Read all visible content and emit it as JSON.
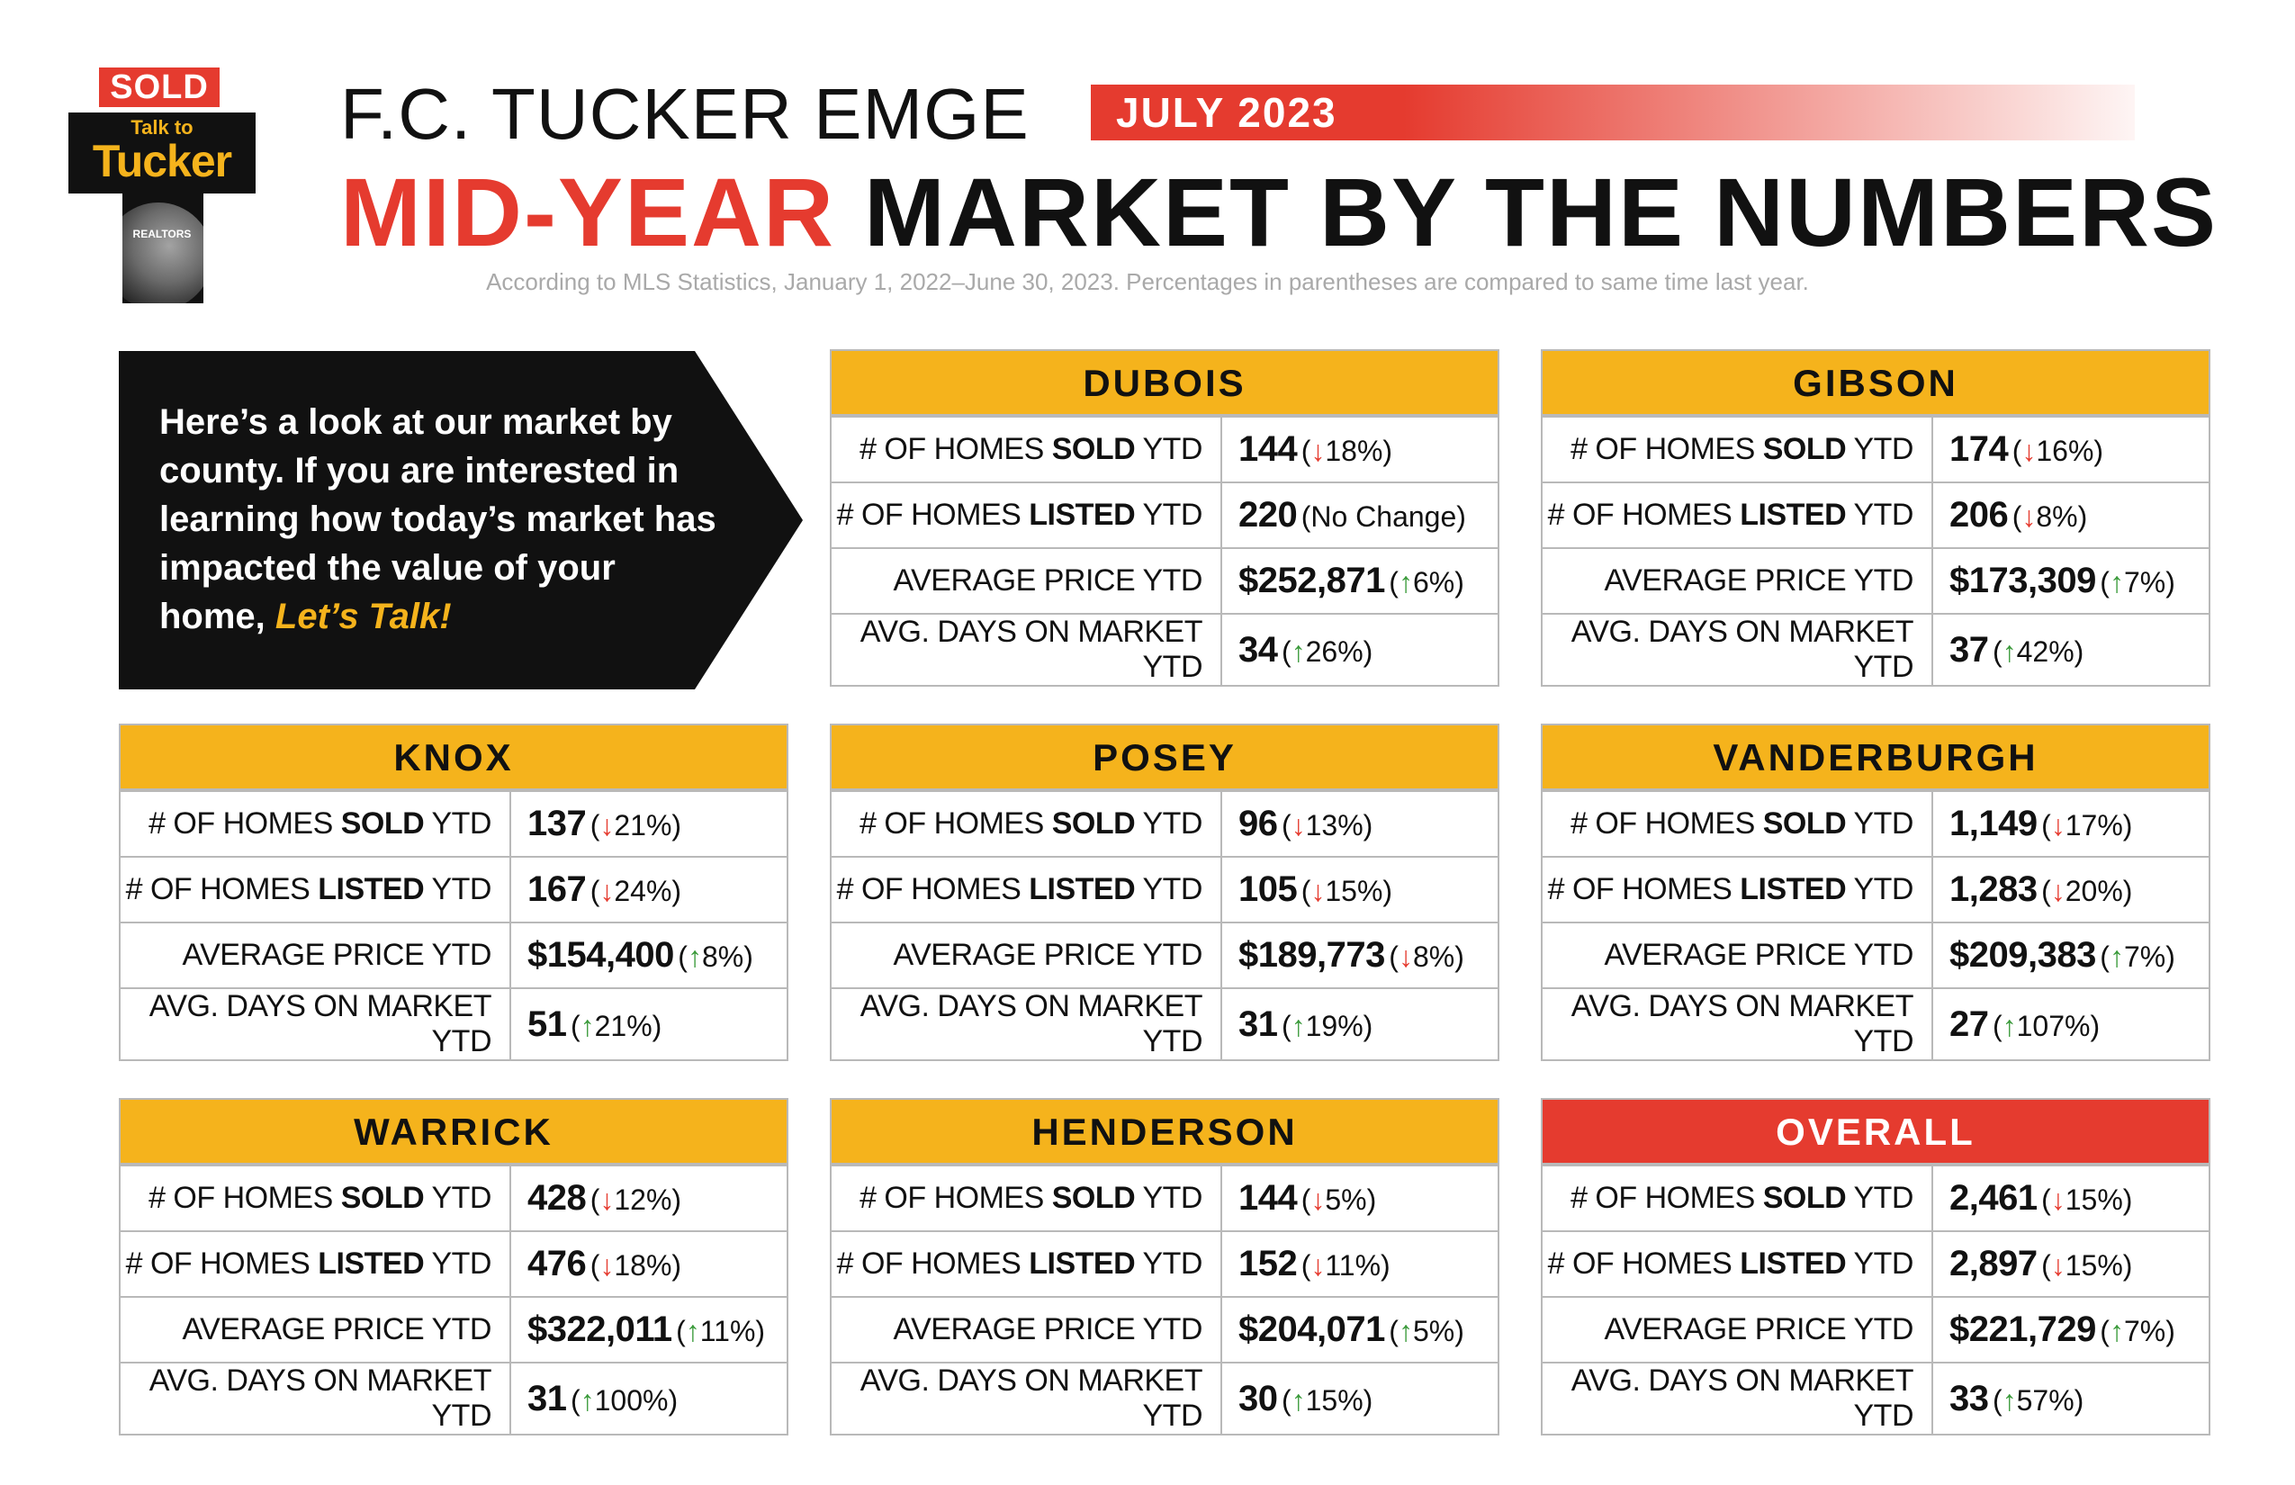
{
  "logo": {
    "sold": "SOLD",
    "talk_to": "Talk to",
    "tucker": "Tucker",
    "realtors": "REALTORS"
  },
  "header": {
    "brand": "F.C. TUCKER EMGE",
    "month": "JULY 2023",
    "headline_red": "MID-YEAR",
    "headline_rest": "MARKET BY THE NUMBERS",
    "subtitle": "According to MLS Statistics, January 1, 2022–June 30, 2023. Percentages in parentheses are compared to same time last year."
  },
  "intro": {
    "text": "Here’s a look at our market by county. If you are interested in learning how today’s market has impacted the value of your home,",
    "cta": "Let’s Talk!"
  },
  "labels": {
    "sold_prefix": "# OF HOMES ",
    "sold_bold": "SOLD",
    "sold_suffix": " YTD",
    "listed_prefix": "# OF HOMES ",
    "listed_bold": "LISTED",
    "listed_suffix": " YTD",
    "price": "AVERAGE PRICE YTD",
    "days": "AVG. DAYS ON MARKET YTD"
  },
  "arrows": {
    "up": "↑",
    "down": "↓"
  },
  "colors": {
    "gold": "#f5b31c",
    "red": "#e53b2f",
    "green": "#3a9a3a",
    "black": "#111111"
  },
  "counties": {
    "dubois": {
      "name": "DUBOIS",
      "sold": {
        "value": "144",
        "dir": "down",
        "pct": "18%"
      },
      "listed": {
        "value": "220",
        "dir": "none",
        "pct": "No Change"
      },
      "price": {
        "value": "$252,871",
        "dir": "up",
        "pct": "6%"
      },
      "days": {
        "value": "34",
        "dir": "up",
        "pct": "26%"
      }
    },
    "gibson": {
      "name": "GIBSON",
      "sold": {
        "value": "174",
        "dir": "down",
        "pct": "16%"
      },
      "listed": {
        "value": "206",
        "dir": "down",
        "pct": "8%"
      },
      "price": {
        "value": "$173,309",
        "dir": "up",
        "pct": "7%"
      },
      "days": {
        "value": "37",
        "dir": "up",
        "pct": "42%"
      }
    },
    "knox": {
      "name": "KNOX",
      "sold": {
        "value": "137",
        "dir": "down",
        "pct": "21%"
      },
      "listed": {
        "value": "167",
        "dir": "down",
        "pct": "24%"
      },
      "price": {
        "value": "$154,400",
        "dir": "up",
        "pct": "8%"
      },
      "days": {
        "value": "51",
        "dir": "up",
        "pct": "21%"
      }
    },
    "posey": {
      "name": "POSEY",
      "sold": {
        "value": "96",
        "dir": "down",
        "pct": "13%"
      },
      "listed": {
        "value": "105",
        "dir": "down",
        "pct": "15%"
      },
      "price": {
        "value": "$189,773",
        "dir": "down",
        "pct": "8%"
      },
      "days": {
        "value": "31",
        "dir": "up",
        "pct": "19%"
      }
    },
    "vanderburgh": {
      "name": "VANDERBURGH",
      "sold": {
        "value": "1,149",
        "dir": "down",
        "pct": "17%"
      },
      "listed": {
        "value": "1,283",
        "dir": "down",
        "pct": "20%"
      },
      "price": {
        "value": "$209,383",
        "dir": "up",
        "pct": "7%"
      },
      "days": {
        "value": "27",
        "dir": "up",
        "pct": "107%"
      }
    },
    "warrick": {
      "name": "WARRICK",
      "sold": {
        "value": "428",
        "dir": "down",
        "pct": "12%"
      },
      "listed": {
        "value": "476",
        "dir": "down",
        "pct": "18%"
      },
      "price": {
        "value": "$322,011",
        "dir": "up",
        "pct": "11%"
      },
      "days": {
        "value": "31",
        "dir": "up",
        "pct": "100%"
      }
    },
    "henderson": {
      "name": "HENDERSON",
      "sold": {
        "value": "144",
        "dir": "down",
        "pct": "5%"
      },
      "listed": {
        "value": "152",
        "dir": "down",
        "pct": "11%"
      },
      "price": {
        "value": "$204,071",
        "dir": "up",
        "pct": "5%"
      },
      "days": {
        "value": "30",
        "dir": "up",
        "pct": "15%"
      }
    },
    "overall": {
      "name": "OVERALL",
      "sold": {
        "value": "2,461",
        "dir": "down",
        "pct": "15%"
      },
      "listed": {
        "value": "2,897",
        "dir": "down",
        "pct": "15%"
      },
      "price": {
        "value": "$221,729",
        "dir": "up",
        "pct": "7%"
      },
      "days": {
        "value": "33",
        "dir": "up",
        "pct": "57%"
      }
    }
  }
}
